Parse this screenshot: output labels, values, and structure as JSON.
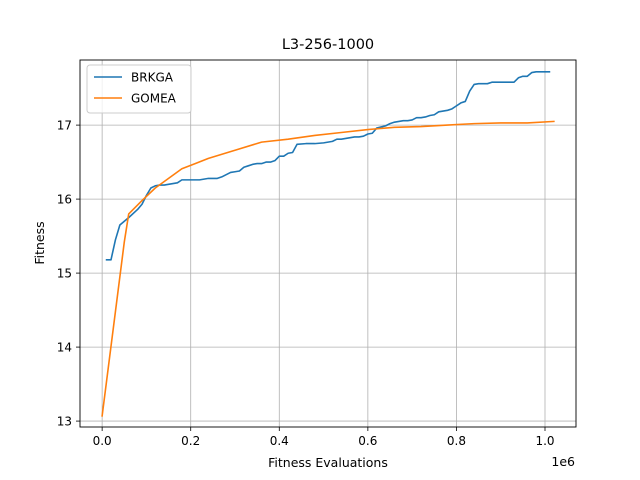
{
  "chart_data": {
    "type": "line",
    "title": "L3-256-1000",
    "xlabel": "Fitness Evaluations",
    "ylabel": "Fitness",
    "x_offset_label": "1e6",
    "xlim": [
      -0.05,
      1.07
    ],
    "ylim": [
      12.92,
      17.88
    ],
    "xticks": [
      0.0,
      0.2,
      0.4,
      0.6,
      0.8,
      1.0
    ],
    "xtick_labels": [
      "0.0",
      "0.2",
      "0.4",
      "0.6",
      "0.8",
      "1.0"
    ],
    "yticks": [
      13,
      14,
      15,
      16,
      17
    ],
    "ytick_labels": [
      "13",
      "14",
      "15",
      "16",
      "17"
    ],
    "grid": true,
    "legend_position": "top-left",
    "series": [
      {
        "name": "BRKGA",
        "color": "#1f77b4",
        "x": [
          0.01,
          0.02,
          0.03,
          0.04,
          0.06,
          0.08,
          0.09,
          0.1,
          0.11,
          0.12,
          0.13,
          0.14,
          0.15,
          0.16,
          0.17,
          0.18,
          0.2,
          0.22,
          0.24,
          0.26,
          0.27,
          0.28,
          0.29,
          0.3,
          0.31,
          0.32,
          0.33,
          0.34,
          0.35,
          0.36,
          0.37,
          0.38,
          0.39,
          0.4,
          0.41,
          0.42,
          0.43,
          0.44,
          0.46,
          0.48,
          0.5,
          0.52,
          0.53,
          0.54,
          0.55,
          0.56,
          0.57,
          0.58,
          0.59,
          0.6,
          0.61,
          0.62,
          0.64,
          0.65,
          0.66,
          0.67,
          0.68,
          0.69,
          0.7,
          0.71,
          0.72,
          0.73,
          0.74,
          0.75,
          0.76,
          0.77,
          0.78,
          0.79,
          0.8,
          0.81,
          0.82,
          0.83,
          0.84,
          0.85,
          0.86,
          0.87,
          0.88,
          0.89,
          0.9,
          0.91,
          0.92,
          0.93,
          0.94,
          0.95,
          0.96,
          0.97,
          0.98,
          0.99,
          1.0,
          1.01
        ],
        "y": [
          15.18,
          15.18,
          15.45,
          15.65,
          15.75,
          15.86,
          15.93,
          16.05,
          16.15,
          16.18,
          16.19,
          16.19,
          16.2,
          16.21,
          16.22,
          16.26,
          16.26,
          16.26,
          16.28,
          16.28,
          16.3,
          16.33,
          16.36,
          16.37,
          16.38,
          16.43,
          16.45,
          16.47,
          16.48,
          16.48,
          16.5,
          16.5,
          16.52,
          16.58,
          16.58,
          16.62,
          16.63,
          16.74,
          16.75,
          16.75,
          16.76,
          16.78,
          16.81,
          16.81,
          16.82,
          16.83,
          16.84,
          16.84,
          16.85,
          16.88,
          16.89,
          16.96,
          16.99,
          17.02,
          17.04,
          17.05,
          17.06,
          17.06,
          17.07,
          17.1,
          17.1,
          17.11,
          17.13,
          17.14,
          17.18,
          17.19,
          17.2,
          17.22,
          17.26,
          17.3,
          17.32,
          17.46,
          17.55,
          17.56,
          17.56,
          17.56,
          17.58,
          17.58,
          17.58,
          17.58,
          17.58,
          17.58,
          17.64,
          17.66,
          17.66,
          17.71,
          17.72,
          17.72,
          17.72,
          17.72
        ]
      },
      {
        "name": "GOMEA",
        "color": "#ff7f0e",
        "x": [
          0.0,
          0.05,
          0.06,
          0.09,
          0.12,
          0.15,
          0.18,
          0.21,
          0.24,
          0.3,
          0.36,
          0.42,
          0.48,
          0.54,
          0.6,
          0.66,
          0.72,
          0.78,
          0.84,
          0.9,
          0.96,
          1.02
        ],
        "y": [
          13.07,
          15.42,
          15.8,
          15.98,
          16.15,
          16.28,
          16.41,
          16.48,
          16.55,
          16.66,
          16.77,
          16.81,
          16.86,
          16.9,
          16.94,
          16.97,
          16.98,
          17.0,
          17.02,
          17.03,
          17.03,
          17.05
        ]
      }
    ]
  }
}
